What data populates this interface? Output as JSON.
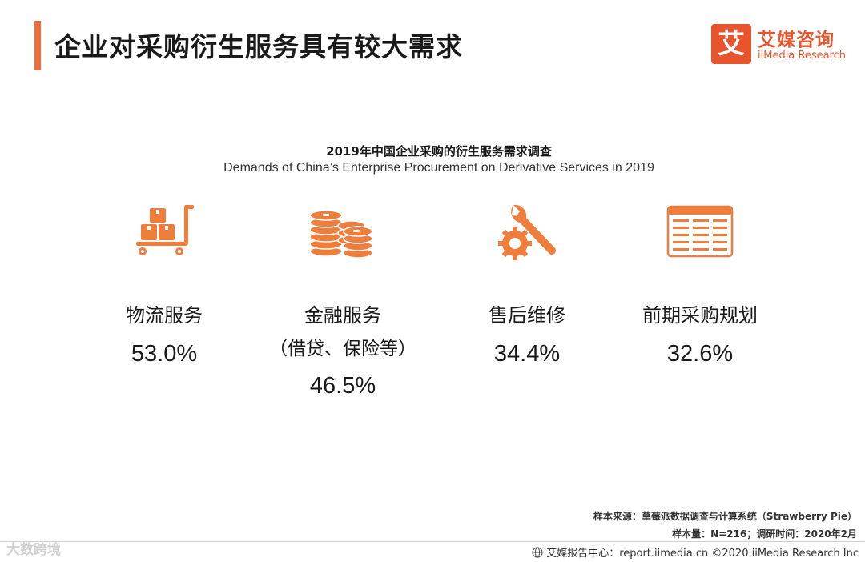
{
  "header": {
    "title": "企业对采购衍生服务具有较大需求",
    "logo": {
      "cn": "艾媒咨询",
      "en": "iiMedia Research",
      "mark": "艾"
    }
  },
  "chart": {
    "title_cn": "2019年中国企业采购的衍生服务需求调查",
    "title_en": "Demands of China’s Enterprise Procurement on Derivative Services in 2019"
  },
  "items": [
    {
      "label": "物流服务",
      "sub": "",
      "value": "53.0%",
      "icon": "logistics-cart-icon"
    },
    {
      "label": "金融服务",
      "sub": "（借贷、保险等）",
      "value": "46.5%",
      "icon": "coins-icon"
    },
    {
      "label": "售后维修",
      "sub": "",
      "value": "34.4%",
      "icon": "wrench-gear-icon"
    },
    {
      "label": "前期采购规划",
      "sub": "",
      "value": "32.6%",
      "icon": "planning-table-icon"
    }
  ],
  "chart_data": {
    "type": "table",
    "categories": [
      "物流服务",
      "金融服务（借贷、保险等）",
      "售后维修",
      "前期采购规划"
    ],
    "values": [
      53.0,
      46.5,
      34.4,
      32.6
    ],
    "unit": "%",
    "title": "2019年中国企业采购的衍生服务需求调查"
  },
  "notes": {
    "source": "样本来源：草莓派数据调查与计算系统（Strawberry Pie）",
    "sample": "样本量：N=216；调研时间：2020年2月"
  },
  "footer": {
    "text": "艾媒报告中心：report.iimedia.cn ©2020 iiMedia Research Inc"
  },
  "watermark": "大数跨境",
  "colors": {
    "accent": "#f26b3a",
    "icon": "#ef7d3c"
  }
}
